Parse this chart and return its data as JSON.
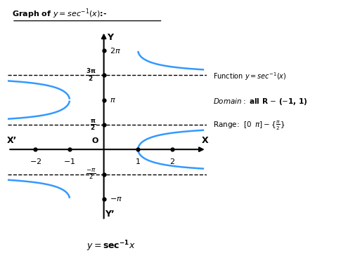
{
  "title": "Graph of $y = \\mathit{sec}^{-1}(x)$:-",
  "xlabel_right": "X",
  "xlabel_left": "X’",
  "ylabel_top": "Y",
  "ylabel_bottom": "Y’",
  "origin_label": "O",
  "curve_color": "#3399FF",
  "curve_linewidth": 1.8,
  "dashed_color": "black",
  "dashed_linewidth": 1.0,
  "dot_color": "black",
  "xlim": [
    -2.8,
    3.0
  ],
  "ylim": [
    -4.5,
    7.5
  ],
  "pi": 3.14159265358979,
  "func_text": "Function $y = sec^{-1}(x)$",
  "domain_label": "Domain:",
  "domain_rest": " all R – (–1, 1)",
  "range_text": "Range:  $[0 \\;\\; \\pi] - \\{\\frac{\\pi}{2}\\}$",
  "bottom_label": "$y = \\mathbf{sec^{-1}}x$"
}
